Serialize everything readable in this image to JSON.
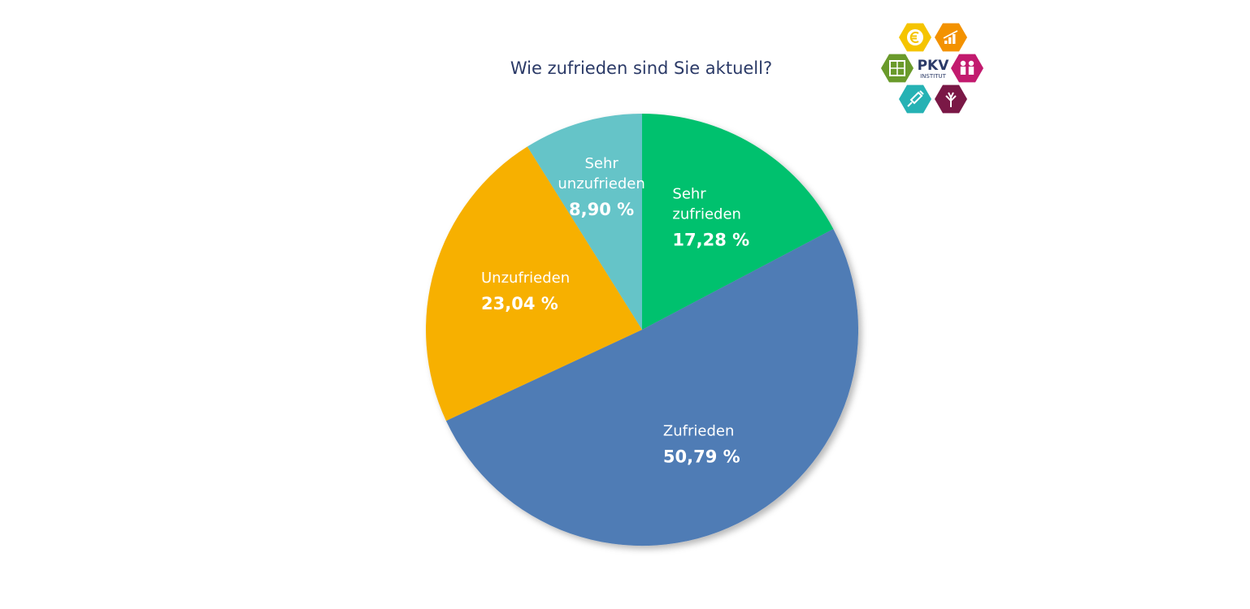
{
  "chart_data": {
    "type": "pie",
    "title": "Wie zufrieden sind Sie aktuell?",
    "slices": [
      {
        "label_lines": [
          "Sehr",
          "zufrieden"
        ],
        "value": 17.28,
        "value_text": "17,28 %",
        "color": "#00c16e"
      },
      {
        "label_lines": [
          "Zufrieden"
        ],
        "value": 50.79,
        "value_text": "50,79 %",
        "color": "#4f7bb5"
      },
      {
        "label_lines": [
          "Unzufrieden"
        ],
        "value": 23.04,
        "value_text": "23,04 %",
        "color": "#f7b000"
      },
      {
        "label_lines": [
          "Sehr",
          "unzufrieden"
        ],
        "value": 8.9,
        "value_text": "8,90 %",
        "color": "#65c4c8"
      }
    ]
  },
  "logo": {
    "name": "PKV",
    "subtitle": "INSTITUT",
    "hexagons": [
      {
        "icon": "euro-icon",
        "color": "#f5c400"
      },
      {
        "icon": "growth-chart-icon",
        "color": "#f39200"
      },
      {
        "icon": "puzzle-icon",
        "color": "#6a9a2b"
      },
      {
        "icon": "family-icon",
        "color": "#c21a6e"
      },
      {
        "icon": "syringe-icon",
        "color": "#26b2b4"
      },
      {
        "icon": "tree-icon",
        "color": "#7a1846"
      }
    ]
  }
}
